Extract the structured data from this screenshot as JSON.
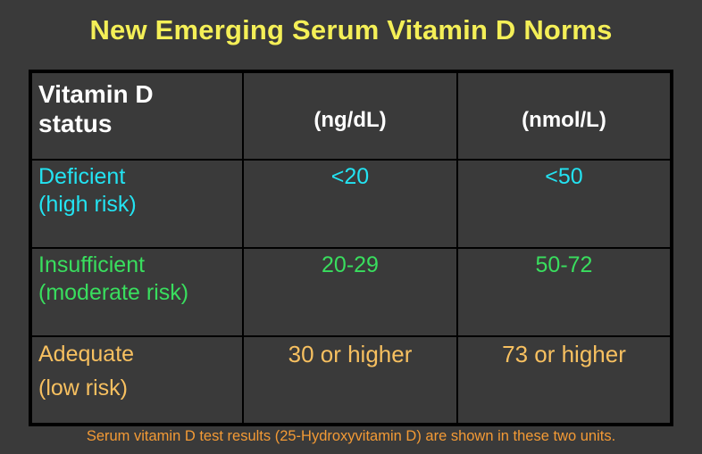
{
  "title": "New Emerging Serum Vitamin D Norms",
  "colors": {
    "background": "#3a3a3a",
    "title": "#f4ef57",
    "header_text": "#ffffff",
    "deficient": "#23e3f2",
    "insufficient": "#39de5e",
    "adequate": "#f7c060",
    "footnote": "#f39a35",
    "grid": "#000000"
  },
  "table": {
    "headers": {
      "status": "Vitamin D\nstatus",
      "unit_ng": "(ng/dL)",
      "unit_nmol": "(nmol/L)"
    },
    "rows": [
      {
        "status": "Deficient\n(high risk)",
        "ng": "<20",
        "nmol": "<50"
      },
      {
        "status": "Insufficient\n(moderate risk)",
        "ng": "20-29",
        "nmol": "50-72"
      },
      {
        "status": "Adequate\n(low risk)",
        "ng": "30 or higher",
        "nmol": "73 or higher"
      }
    ]
  },
  "footnote": "Serum vitamin D test results (25-Hydroxyvitamin D) are shown in these two units."
}
